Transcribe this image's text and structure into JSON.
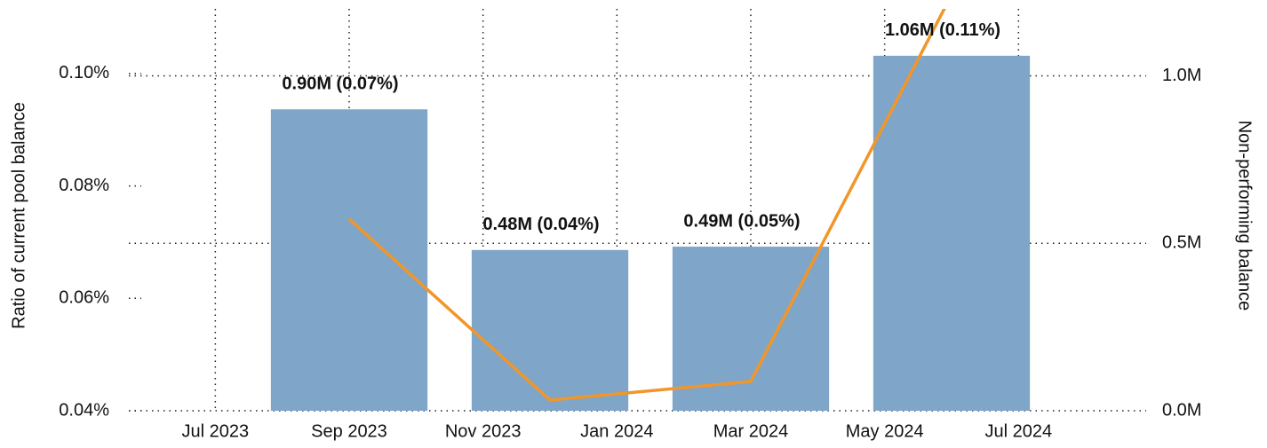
{
  "chart_data": {
    "type": "bar-line",
    "x": [
      "2023-09",
      "2023-12",
      "2024-03",
      "2024-06"
    ],
    "xlim": [
      "2023-06",
      "2024-09"
    ],
    "xticks": [
      {
        "value": "2023-07",
        "label": "Jul 2023"
      },
      {
        "value": "2023-09",
        "label": "Sep 2023"
      },
      {
        "value": "2023-11",
        "label": "Nov 2023"
      },
      {
        "value": "2024-01",
        "label": "Jan 2024"
      },
      {
        "value": "2024-03",
        "label": "Mar 2024"
      },
      {
        "value": "2024-05",
        "label": "May 2024"
      },
      {
        "value": "2024-07",
        "label": "Jul 2024"
      }
    ],
    "ylabel": "Ratio of current pool balance",
    "ylim": [
      0.04,
      0.1115
    ],
    "yticks": [
      {
        "value": 0.04,
        "label": "0.04%"
      },
      {
        "value": 0.06,
        "label": "0.06%"
      },
      {
        "value": 0.08,
        "label": "0.08%"
      },
      {
        "value": 0.1,
        "label": "0.10%"
      }
    ],
    "y2label": "Non-performing balance",
    "y2lim": [
      0,
      1200000
    ],
    "y2ticks": [
      {
        "value": 0,
        "label": "0.0M"
      },
      {
        "value": 500000,
        "label": "0.5M"
      },
      {
        "value": 1000000,
        "label": "1.0M"
      }
    ],
    "grid": true,
    "series": [
      {
        "type": "bar",
        "axis": "y2",
        "color": "#7fa6c8",
        "values": [
          900000,
          480000,
          490000,
          1060000
        ],
        "value_labels": [
          "0.90M (0.07%)",
          "0.48M (0.04%)",
          "0.49M (0.05%)",
          "1.06M (0.11%)"
        ]
      },
      {
        "type": "line",
        "axis": "y",
        "color": "#f0962a",
        "values": [
          0.0741,
          0.0419,
          0.0452,
          0.114
        ]
      }
    ]
  }
}
